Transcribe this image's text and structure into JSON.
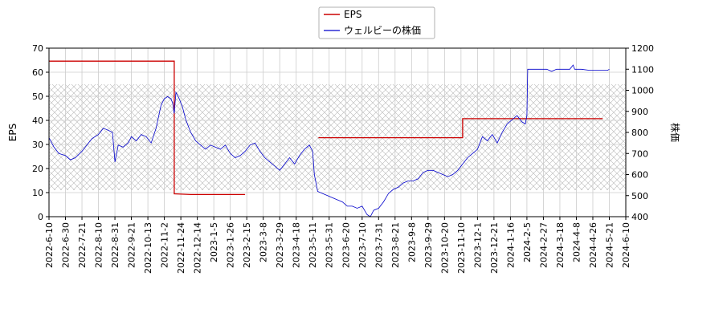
{
  "chart_data": {
    "type": "line",
    "legend": {
      "placement": "top-center",
      "items": [
        "EPS",
        "ウェルビーの株価"
      ]
    },
    "grid": true,
    "left_axis": {
      "label": "EPS",
      "ylim": [
        0,
        70
      ],
      "ticks": [
        0,
        10,
        20,
        30,
        40,
        50,
        60,
        70
      ]
    },
    "right_axis": {
      "label": "株価",
      "ylim": [
        400,
        1200
      ],
      "ticks": [
        400,
        500,
        600,
        700,
        800,
        900,
        1000,
        1100,
        1200
      ]
    },
    "x_ticks": [
      "2022-6-10",
      "2022-6-30",
      "2022-7-21",
      "2022-8-10",
      "2022-8-31",
      "2022-9-21",
      "2022-10-13",
      "2022-11-2",
      "2022-11-24",
      "2022-12-14",
      "2023-1-5",
      "2023-1-26",
      "2023-2-15",
      "2023-3-8",
      "2023-3-29",
      "2023-4-18",
      "2023-5-11",
      "2023-5-31",
      "2023-6-20",
      "2023-7-10",
      "2023-7-31",
      "2023-8-21",
      "2023-9-8",
      "2023-9-29",
      "2023-10-20",
      "2023-11-10",
      "2023-12-1",
      "2023-12-21",
      "2024-1-16",
      "2024-2-5",
      "2024-2-27",
      "2024-3-18",
      "2024-4-8",
      "2024-4-26",
      "2024-5-21",
      "2024-6-10"
    ],
    "shaded_band": {
      "axis": "left",
      "range": [
        11,
        55
      ]
    },
    "series": [
      {
        "name": "EPS",
        "axis": "left",
        "color": "#cc0000",
        "segments": [
          [
            [
              0,
              64.6
            ],
            [
              7.6,
              64.6
            ],
            [
              7.6,
              9.5
            ],
            [
              8.6,
              9.2
            ],
            [
              11.9,
              9.2
            ]
          ],
          [
            [
              16.35,
              32.8
            ],
            [
              25.1,
              32.8
            ],
            [
              25.1,
              40.7
            ],
            [
              33.6,
              40.7
            ]
          ]
        ]
      },
      {
        "name": "ウェルビーの株価",
        "axis": "right",
        "color": "#0000cc",
        "points": [
          [
            0,
            775
          ],
          [
            0.3,
            730
          ],
          [
            0.6,
            700
          ],
          [
            1.0,
            690
          ],
          [
            1.3,
            670
          ],
          [
            1.6,
            680
          ],
          [
            2.0,
            710
          ],
          [
            2.3,
            740
          ],
          [
            2.6,
            770
          ],
          [
            3.0,
            790
          ],
          [
            3.3,
            820
          ],
          [
            3.6,
            810
          ],
          [
            3.85,
            800
          ],
          [
            4.0,
            660
          ],
          [
            4.2,
            740
          ],
          [
            4.5,
            730
          ],
          [
            4.8,
            750
          ],
          [
            5.0,
            780
          ],
          [
            5.3,
            760
          ],
          [
            5.6,
            790
          ],
          [
            5.9,
            780
          ],
          [
            6.2,
            750
          ],
          [
            6.5,
            820
          ],
          [
            6.8,
            930
          ],
          [
            7.0,
            960
          ],
          [
            7.2,
            970
          ],
          [
            7.4,
            960
          ],
          [
            7.5,
            940
          ],
          [
            7.6,
            890
          ],
          [
            7.7,
            990
          ],
          [
            7.9,
            960
          ],
          [
            8.1,
            920
          ],
          [
            8.3,
            860
          ],
          [
            8.6,
            800
          ],
          [
            8.9,
            760
          ],
          [
            9.2,
            740
          ],
          [
            9.5,
            720
          ],
          [
            9.8,
            740
          ],
          [
            10.1,
            730
          ],
          [
            10.4,
            720
          ],
          [
            10.7,
            740
          ],
          [
            11.0,
            700
          ],
          [
            11.3,
            680
          ],
          [
            11.6,
            690
          ],
          [
            11.9,
            710
          ],
          [
            12.2,
            740
          ],
          [
            12.5,
            750
          ],
          [
            12.8,
            710
          ],
          [
            13.1,
            680
          ],
          [
            13.4,
            660
          ],
          [
            13.7,
            640
          ],
          [
            14.0,
            620
          ],
          [
            14.3,
            650
          ],
          [
            14.6,
            680
          ],
          [
            14.9,
            650
          ],
          [
            15.2,
            690
          ],
          [
            15.5,
            720
          ],
          [
            15.8,
            740
          ],
          [
            16.0,
            710
          ],
          [
            16.1,
            600
          ],
          [
            16.3,
            520
          ],
          [
            16.6,
            510
          ],
          [
            16.9,
            500
          ],
          [
            17.2,
            490
          ],
          [
            17.5,
            480
          ],
          [
            17.8,
            470
          ],
          [
            18.1,
            450
          ],
          [
            18.4,
            450
          ],
          [
            18.7,
            440
          ],
          [
            19.0,
            450
          ],
          [
            19.3,
            410
          ],
          [
            19.5,
            400
          ],
          [
            19.7,
            430
          ],
          [
            20.0,
            440
          ],
          [
            20.3,
            470
          ],
          [
            20.6,
            510
          ],
          [
            20.9,
            530
          ],
          [
            21.2,
            540
          ],
          [
            21.5,
            560
          ],
          [
            21.8,
            570
          ],
          [
            22.1,
            570
          ],
          [
            22.4,
            580
          ],
          [
            22.7,
            610
          ],
          [
            23.0,
            620
          ],
          [
            23.3,
            620
          ],
          [
            23.6,
            610
          ],
          [
            23.9,
            600
          ],
          [
            24.2,
            590
          ],
          [
            24.5,
            600
          ],
          [
            24.8,
            620
          ],
          [
            25.1,
            650
          ],
          [
            25.4,
            680
          ],
          [
            25.7,
            700
          ],
          [
            26.0,
            720
          ],
          [
            26.3,
            780
          ],
          [
            26.6,
            760
          ],
          [
            26.9,
            790
          ],
          [
            27.2,
            750
          ],
          [
            27.5,
            800
          ],
          [
            27.8,
            840
          ],
          [
            28.1,
            860
          ],
          [
            28.4,
            880
          ],
          [
            28.7,
            850
          ],
          [
            28.9,
            840
          ],
          [
            29.0,
            880
          ],
          [
            29.05,
            1100
          ],
          [
            29.4,
            1100
          ],
          [
            29.8,
            1100
          ],
          [
            30.2,
            1100
          ],
          [
            30.5,
            1090
          ],
          [
            30.8,
            1100
          ],
          [
            31.2,
            1100
          ],
          [
            31.6,
            1100
          ],
          [
            31.8,
            1120
          ],
          [
            31.9,
            1100
          ],
          [
            32.3,
            1100
          ],
          [
            32.8,
            1095
          ],
          [
            33.4,
            1095
          ],
          [
            33.9,
            1095
          ],
          [
            34.0,
            1100
          ]
        ]
      }
    ]
  }
}
